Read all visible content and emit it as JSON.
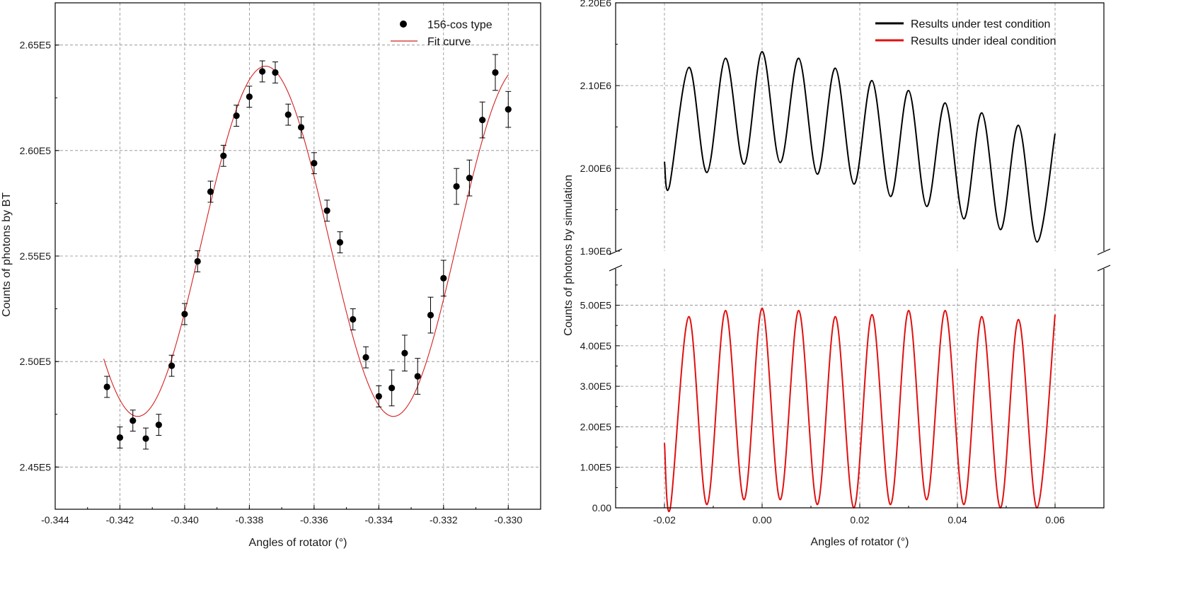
{
  "chart_data": [
    {
      "type": "scatter",
      "title": "",
      "xlabel": "Angles of rotator (°)",
      "ylabel": "Counts of photons by BT",
      "xlim": [
        -0.344,
        -0.329
      ],
      "ylim": [
        243000,
        267000
      ],
      "grid": true,
      "legend_position": "top-right",
      "x_ticks": [
        -0.344,
        -0.342,
        -0.34,
        -0.338,
        -0.336,
        -0.334,
        -0.332,
        -0.33
      ],
      "x_tick_labels": [
        "-0.344",
        "-0.342",
        "-0.340",
        "-0.338",
        "-0.336",
        "-0.334",
        "-0.332",
        "-0.330"
      ],
      "y_ticks": [
        245000,
        250000,
        255000,
        260000,
        265000
      ],
      "y_tick_labels": [
        "2.45E5",
        "2.50E5",
        "2.55E5",
        "2.60E5",
        "2.65E5"
      ],
      "series": [
        {
          "name": "156-cos type",
          "kind": "points-with-error-bars",
          "color": "#000000",
          "x": [
            -0.3424,
            -0.342,
            -0.3416,
            -0.3412,
            -0.3408,
            -0.3404,
            -0.34,
            -0.3396,
            -0.3392,
            -0.3388,
            -0.3384,
            -0.338,
            -0.3376,
            -0.3372,
            -0.3368,
            -0.3364,
            -0.336,
            -0.3356,
            -0.3352,
            -0.3348,
            -0.3344,
            -0.334,
            -0.3336,
            -0.3332,
            -0.3328,
            -0.3324,
            -0.332,
            -0.3316,
            -0.3312,
            -0.3308,
            -0.3304,
            -0.33
          ],
          "y": [
            248800,
            246400,
            247200,
            246350,
            247000,
            249800,
            252250,
            254750,
            258050,
            259750,
            261650,
            262550,
            263750,
            263700,
            261700,
            261100,
            259400,
            257150,
            255650,
            252000,
            250200,
            248350,
            248750,
            250400,
            249300,
            252200,
            253950,
            258300,
            258700,
            261450,
            263700,
            261950
          ],
          "err": [
            500,
            500,
            500,
            500,
            500,
            500,
            500,
            500,
            500,
            500,
            500,
            500,
            500,
            500,
            500,
            500,
            500,
            500,
            500,
            500,
            500,
            500,
            850,
            850,
            850,
            850,
            850,
            850,
            850,
            850,
            850,
            850
          ]
        },
        {
          "name": "Fit curve",
          "kind": "line",
          "color": "#d42020",
          "model": "y = 255700 + 8300*cos(2*pi*(x + 0.3375)/0.0079)",
          "x_range": [
            -0.3425,
            -0.33
          ]
        }
      ]
    },
    {
      "type": "line",
      "title": "",
      "xlabel": "Angles of rotator (°)",
      "ylabel": "Counts of photons by simulation",
      "xlim": [
        -0.03,
        0.07
      ],
      "grid": true,
      "legend_position": "top-right",
      "broken_y_axis": true,
      "x_ticks": [
        -0.02,
        0.0,
        0.02,
        0.04,
        0.06
      ],
      "x_tick_labels": [
        "-0.02",
        "0.00",
        "0.02",
        "0.04",
        "0.06"
      ],
      "upper_panel": {
        "ylim": [
          1900000,
          2200000
        ],
        "y_ticks": [
          1900000,
          2000000,
          2100000,
          2200000
        ],
        "y_tick_labels": [
          "1.90E6",
          "2.00E6",
          "2.10E6",
          "2.20E6"
        ]
      },
      "lower_panel": {
        "ylim": [
          0,
          590000
        ],
        "y_ticks": [
          0,
          100000,
          200000,
          300000,
          400000,
          500000
        ],
        "y_tick_labels": [
          "0.00",
          "1.00E5",
          "2.00E5",
          "3.00E5",
          "4.00E5",
          "5.00E5"
        ]
      },
      "series": [
        {
          "name": "Results under test condition",
          "color": "#000000",
          "panel": "upper",
          "x": [
            -0.02,
            -0.019,
            -0.015,
            -0.0113,
            -0.0075,
            -0.0037,
            0.0,
            0.0037,
            0.0075,
            0.0113,
            0.015,
            0.0188,
            0.0225,
            0.0263,
            0.03,
            0.0337,
            0.0375,
            0.0413,
            0.045,
            0.0488,
            0.0525,
            0.0563,
            0.06
          ],
          "y": [
            2008000,
            1978000,
            2122000,
            1995000,
            2133000,
            2005000,
            2141000,
            2007000,
            2133000,
            1993000,
            2121000,
            1981000,
            2106000,
            1966000,
            2094000,
            1954000,
            2079000,
            1939000,
            2067000,
            1926000,
            2052000,
            1911000,
            2042000
          ]
        },
        {
          "name": "Results under ideal condition",
          "color": "#e01010",
          "panel": "lower",
          "x": [
            -0.02,
            -0.0188,
            -0.015,
            -0.0113,
            -0.0075,
            -0.0037,
            0.0,
            0.0037,
            0.0075,
            0.0113,
            0.015,
            0.0188,
            0.0225,
            0.0263,
            0.03,
            0.0337,
            0.0375,
            0.0413,
            0.045,
            0.0488,
            0.0525,
            0.0563,
            0.06
          ],
          "y": [
            160000,
            0,
            472000,
            8000,
            487000,
            20000,
            493000,
            20000,
            487000,
            8000,
            472000,
            0,
            477000,
            8000,
            487000,
            20000,
            487000,
            8000,
            472000,
            0,
            465000,
            0,
            477000
          ]
        }
      ]
    }
  ]
}
